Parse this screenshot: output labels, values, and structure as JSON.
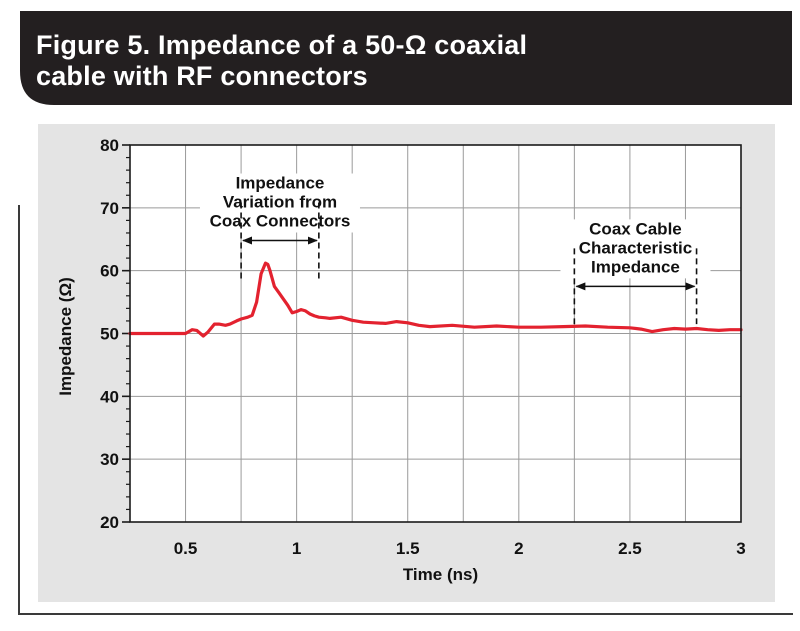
{
  "figure": {
    "title": "Figure 5. Impedance of a 50-Ω coaxial\n cable with RF connectors"
  },
  "colors": {
    "banner": "#231f20",
    "panel": "#e4e4e4",
    "plot_background": "#ffffff",
    "grid": "#9a9a9a",
    "series": "#e3222f"
  },
  "chart_data": {
    "type": "line",
    "title": "",
    "xlabel": "Time (ns)",
    "ylabel": "Impedance (Ω)",
    "xlim": [
      0.25,
      3.0
    ],
    "ylim": [
      20,
      80
    ],
    "x_ticks": [
      0.5,
      1,
      1.5,
      2,
      2.5,
      3
    ],
    "x_tick_labels": [
      "0.5",
      "1",
      "1.5",
      "2",
      "2.5",
      "3"
    ],
    "y_ticks": [
      20,
      30,
      40,
      50,
      60,
      70,
      80
    ],
    "y_tick_labels": [
      "20",
      "30",
      "40",
      "50",
      "60",
      "70",
      "80"
    ],
    "grid": true,
    "series": [
      {
        "x": [
          0.25,
          0.3,
          0.35,
          0.4,
          0.45,
          0.5,
          0.53,
          0.55,
          0.58,
          0.6,
          0.63,
          0.65,
          0.68,
          0.7,
          0.73,
          0.75,
          0.78,
          0.8,
          0.82,
          0.84,
          0.86,
          0.87,
          0.88,
          0.9,
          0.92,
          0.94,
          0.96,
          0.98,
          1.0,
          1.02,
          1.04,
          1.06,
          1.08,
          1.1,
          1.13,
          1.15,
          1.2,
          1.25,
          1.3,
          1.35,
          1.4,
          1.45,
          1.5,
          1.55,
          1.6,
          1.7,
          1.8,
          1.9,
          2.0,
          2.1,
          2.2,
          2.3,
          2.4,
          2.5,
          2.55,
          2.6,
          2.65,
          2.7,
          2.75,
          2.8,
          2.85,
          2.9,
          2.95,
          3.0
        ],
        "values": [
          50.0,
          50.0,
          50.0,
          50.0,
          50.0,
          50.0,
          50.6,
          50.5,
          49.6,
          50.2,
          51.5,
          51.5,
          51.3,
          51.5,
          52.0,
          52.3,
          52.6,
          52.9,
          55.0,
          59.5,
          61.2,
          61.0,
          60.0,
          57.5,
          56.5,
          55.5,
          54.5,
          53.3,
          53.5,
          53.8,
          53.6,
          53.1,
          52.8,
          52.6,
          52.5,
          52.4,
          52.6,
          52.1,
          51.8,
          51.7,
          51.6,
          51.9,
          51.7,
          51.3,
          51.1,
          51.3,
          51.0,
          51.2,
          51.0,
          51.0,
          51.1,
          51.2,
          51.0,
          50.9,
          50.7,
          50.3,
          50.6,
          50.8,
          50.7,
          50.8,
          50.6,
          50.5,
          50.6,
          50.6
        ]
      }
    ],
    "annotations": [
      {
        "text": "Impedance\nVariation from\nCoax Connectors",
        "x_start": 0.75,
        "x_end": 1.1,
        "arrow_y": 64.8,
        "marker_bottom_y": 58.5
      },
      {
        "text": "Coax Cable\nCharacteristic\nImpedance",
        "x_start": 2.25,
        "x_end": 2.8,
        "arrow_y": 57.5,
        "marker_bottom_y": 51.5
      }
    ]
  }
}
